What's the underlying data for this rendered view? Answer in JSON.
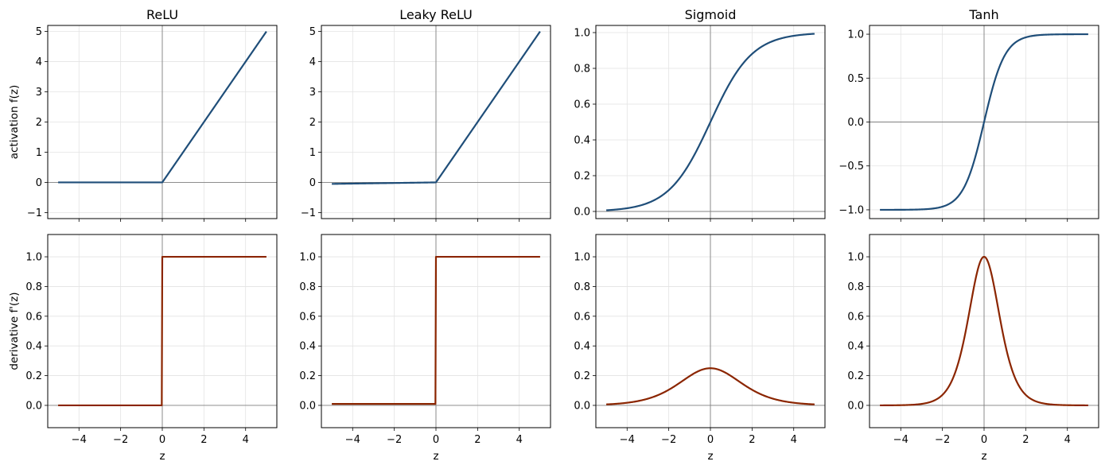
{
  "colors": {
    "activation": "#1f4e79",
    "derivative": "#8b2500",
    "zero_line": "#808080",
    "grid": "#e3e3e3",
    "frame": "#000000"
  },
  "chart_data": [
    {
      "type": "line",
      "panel": "relu-activation",
      "title": "ReLU",
      "xlabel": "",
      "ylabel": "activation  f(z)",
      "func": "relu",
      "kind": "activation",
      "xlim": [
        -5.5,
        5.5
      ],
      "ylim": [
        -1.2,
        5.2
      ],
      "xticks": [
        -4,
        -2,
        0,
        2,
        4
      ],
      "xtick_labels": [],
      "yticks": [
        -1,
        0,
        1,
        2,
        3,
        4,
        5
      ],
      "ytick_labels": [
        "−1",
        "0",
        "1",
        "2",
        "3",
        "4",
        "5"
      ],
      "grid": true,
      "series": [
        {
          "x": [
            -5,
            0,
            5
          ],
          "y": [
            0,
            0,
            5
          ]
        }
      ]
    },
    {
      "type": "line",
      "panel": "leaky-relu-activation",
      "title": "Leaky ReLU",
      "xlabel": "",
      "ylabel": "",
      "func": "leaky",
      "kind": "activation",
      "xlim": [
        -5.5,
        5.5
      ],
      "ylim": [
        -1.2,
        5.2
      ],
      "xticks": [
        -4,
        -2,
        0,
        2,
        4
      ],
      "xtick_labels": [],
      "yticks": [
        -1,
        0,
        1,
        2,
        3,
        4,
        5
      ],
      "ytick_labels": [
        "−1",
        "0",
        "1",
        "2",
        "3",
        "4",
        "5"
      ],
      "grid": true,
      "series": [
        {
          "x": [
            -5,
            0,
            5
          ],
          "y": [
            -0.05,
            0,
            5
          ]
        }
      ]
    },
    {
      "type": "line",
      "panel": "sigmoid-activation",
      "title": "Sigmoid",
      "xlabel": "",
      "ylabel": "",
      "func": "sigmoid",
      "kind": "activation",
      "xlim": [
        -5.5,
        5.5
      ],
      "ylim": [
        -0.04,
        1.04
      ],
      "xticks": [
        -4,
        -2,
        0,
        2,
        4
      ],
      "xtick_labels": [],
      "yticks": [
        0,
        0.2,
        0.4,
        0.6,
        0.8,
        1.0
      ],
      "ytick_labels": [
        "0.0",
        "0.2",
        "0.4",
        "0.6",
        "0.8",
        "1.0"
      ],
      "grid": true,
      "series": [
        {
          "x": [
            -5,
            -4,
            -3,
            -2,
            -1,
            0,
            1,
            2,
            3,
            4,
            5
          ],
          "y": [
            0.007,
            0.018,
            0.047,
            0.119,
            0.269,
            0.5,
            0.731,
            0.881,
            0.953,
            0.982,
            0.993
          ]
        }
      ]
    },
    {
      "type": "line",
      "panel": "tanh-activation",
      "title": "Tanh",
      "xlabel": "",
      "ylabel": "",
      "func": "tanh",
      "kind": "activation",
      "xlim": [
        -5.5,
        5.5
      ],
      "ylim": [
        -1.1,
        1.1
      ],
      "xticks": [
        -4,
        -2,
        0,
        2,
        4
      ],
      "xtick_labels": [],
      "yticks": [
        -1,
        -0.5,
        0,
        0.5,
        1
      ],
      "ytick_labels": [
        "−1.0",
        "−0.5",
        "0.0",
        "0.5",
        "1.0"
      ],
      "grid": true,
      "series": [
        {
          "x": [
            -5,
            -4,
            -3,
            -2,
            -1,
            0,
            1,
            2,
            3,
            4,
            5
          ],
          "y": [
            -1.0,
            -0.999,
            -0.995,
            -0.964,
            -0.762,
            0,
            0.762,
            0.964,
            0.995,
            0.999,
            1.0
          ]
        }
      ]
    },
    {
      "type": "line",
      "panel": "relu-derivative",
      "title": "",
      "xlabel": "z",
      "ylabel": "derivative  f'(z)",
      "func": "relu",
      "kind": "derivative",
      "xlim": [
        -5.5,
        5.5
      ],
      "ylim": [
        -0.15,
        1.15
      ],
      "xticks": [
        -4,
        -2,
        0,
        2,
        4
      ],
      "xtick_labels": [
        "−4",
        "−2",
        "0",
        "2",
        "4"
      ],
      "yticks": [
        0,
        0.2,
        0.4,
        0.6,
        0.8,
        1.0
      ],
      "ytick_labels": [
        "0.0",
        "0.2",
        "0.4",
        "0.6",
        "0.8",
        "1.0"
      ],
      "grid": true,
      "series": [
        {
          "x": [
            -5,
            0,
            0,
            5
          ],
          "y": [
            0,
            0,
            1,
            1
          ]
        }
      ]
    },
    {
      "type": "line",
      "panel": "leaky-relu-derivative",
      "title": "",
      "xlabel": "z",
      "ylabel": "",
      "func": "leaky",
      "kind": "derivative",
      "xlim": [
        -5.5,
        5.5
      ],
      "ylim": [
        -0.15,
        1.15
      ],
      "xticks": [
        -4,
        -2,
        0,
        2,
        4
      ],
      "xtick_labels": [
        "−4",
        "−2",
        "0",
        "2",
        "4"
      ],
      "yticks": [
        0,
        0.2,
        0.4,
        0.6,
        0.8,
        1.0
      ],
      "ytick_labels": [
        "0.0",
        "0.2",
        "0.4",
        "0.6",
        "0.8",
        "1.0"
      ],
      "grid": true,
      "series": [
        {
          "x": [
            -5,
            0,
            0,
            5
          ],
          "y": [
            0.01,
            0.01,
            1,
            1
          ]
        }
      ]
    },
    {
      "type": "line",
      "panel": "sigmoid-derivative",
      "title": "",
      "xlabel": "z",
      "ylabel": "",
      "func": "sigmoid",
      "kind": "derivative",
      "xlim": [
        -5.5,
        5.5
      ],
      "ylim": [
        -0.15,
        1.15
      ],
      "xticks": [
        -4,
        -2,
        0,
        2,
        4
      ],
      "xtick_labels": [
        "−4",
        "−2",
        "0",
        "2",
        "4"
      ],
      "yticks": [
        0,
        0.2,
        0.4,
        0.6,
        0.8,
        1.0
      ],
      "ytick_labels": [
        "0.0",
        "0.2",
        "0.4",
        "0.6",
        "0.8",
        "1.0"
      ],
      "grid": true,
      "series": [
        {
          "x": [
            -5,
            -4,
            -3,
            -2,
            -1,
            0,
            1,
            2,
            3,
            4,
            5
          ],
          "y": [
            0.007,
            0.018,
            0.045,
            0.105,
            0.197,
            0.25,
            0.197,
            0.105,
            0.045,
            0.018,
            0.007
          ]
        }
      ]
    },
    {
      "type": "line",
      "panel": "tanh-derivative",
      "title": "",
      "xlabel": "z",
      "ylabel": "",
      "func": "tanh",
      "kind": "derivative",
      "xlim": [
        -5.5,
        5.5
      ],
      "ylim": [
        -0.15,
        1.15
      ],
      "xticks": [
        -4,
        -2,
        0,
        2,
        4
      ],
      "xtick_labels": [
        "−4",
        "−2",
        "0",
        "2",
        "4"
      ],
      "yticks": [
        0,
        0.2,
        0.4,
        0.6,
        0.8,
        1.0
      ],
      "ytick_labels": [
        "0.0",
        "0.2",
        "0.4",
        "0.6",
        "0.8",
        "1.0"
      ],
      "grid": true,
      "series": [
        {
          "x": [
            -5,
            -4,
            -3,
            -2,
            -1,
            0,
            1,
            2,
            3,
            4,
            5
          ],
          "y": [
            0.0002,
            0.001,
            0.01,
            0.071,
            0.42,
            1.0,
            0.42,
            0.071,
            0.01,
            0.001,
            0.0002
          ]
        }
      ]
    }
  ]
}
